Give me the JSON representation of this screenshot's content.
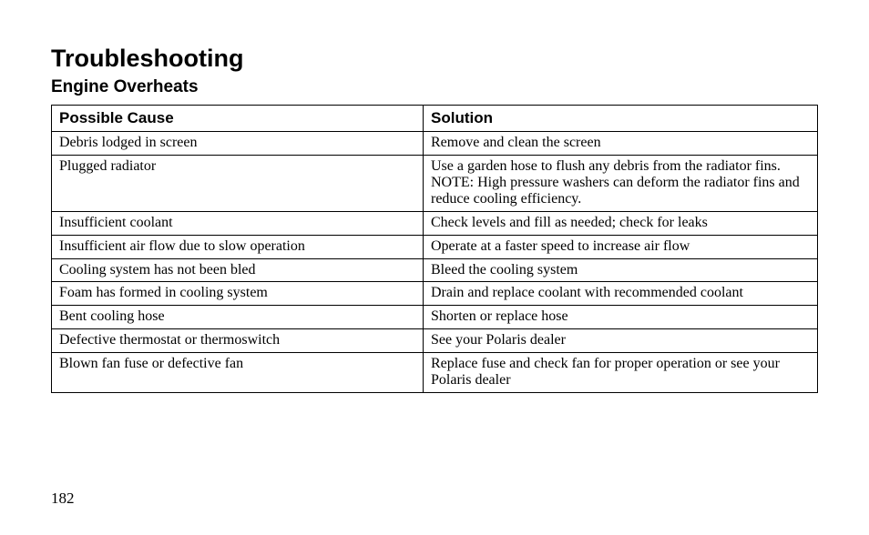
{
  "title": "Troubleshooting",
  "subtitle": "Engine Overheats",
  "table": {
    "headers": {
      "cause": "Possible Cause",
      "solution": "Solution"
    },
    "rows": [
      {
        "cause": "Debris lodged in screen",
        "solution": "Remove and clean the screen"
      },
      {
        "cause": "Plugged radiator",
        "solution": "Use a garden hose to flush any debris from the radiator fins. NOTE: High pressure washers can deform the radiator fins and reduce cooling efficiency."
      },
      {
        "cause": "Insufficient coolant",
        "solution": "Check levels and fill as needed; check for leaks"
      },
      {
        "cause": "Insufficient air flow due to slow operation",
        "solution": "Operate at a faster speed to increase air flow"
      },
      {
        "cause": "Cooling system has not been bled",
        "solution": "Bleed the cooling system"
      },
      {
        "cause": "Foam has formed in cooling system",
        "solution": "Drain and replace coolant with recommended coolant"
      },
      {
        "cause": "Bent cooling hose",
        "solution": "Shorten or replace hose"
      },
      {
        "cause": "Defective thermostat or thermoswitch",
        "solution": "See your Polaris dealer"
      },
      {
        "cause": "Blown fan fuse or defective fan",
        "solution": "Replace fuse and check fan for proper operation or see your Polaris dealer"
      }
    ]
  },
  "pageNumber": "182"
}
